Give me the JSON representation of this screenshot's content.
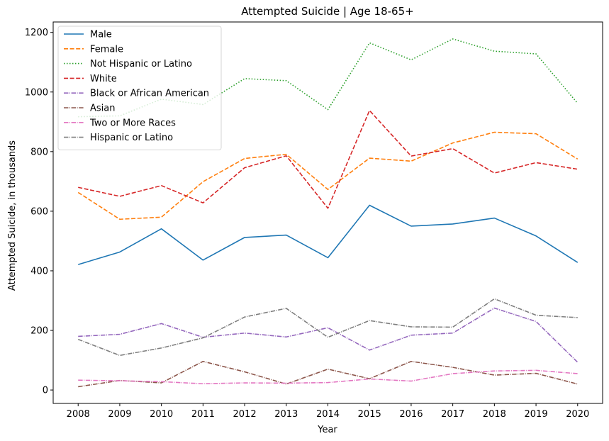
{
  "chart_data": {
    "type": "line",
    "title": "Attempted Suicide | Age 18-65+",
    "xlabel": "Year",
    "ylabel": "Attempted Suicide, in thousands",
    "x": [
      2008,
      2009,
      2010,
      2011,
      2012,
      2013,
      2014,
      2015,
      2016,
      2017,
      2018,
      2019,
      2020
    ],
    "xlim": [
      2007.4,
      2020.6
    ],
    "ylim": [
      -45,
      1235
    ],
    "yticks": [
      0,
      200,
      400,
      600,
      800,
      1000,
      1200
    ],
    "grid": false,
    "legend_position": "top-left",
    "series": [
      {
        "name": "Male",
        "color": "#1f77b4",
        "dash": "solid",
        "values": [
          421,
          463,
          541,
          436,
          512,
          520,
          444,
          620,
          550,
          557,
          577,
          517,
          428
        ]
      },
      {
        "name": "Female",
        "color": "#ff7f0e",
        "dash": "dashed",
        "values": [
          663,
          573,
          580,
          699,
          777,
          791,
          673,
          778,
          768,
          829,
          865,
          860,
          775
        ]
      },
      {
        "name": "Not Hispanic or Latino",
        "color": "#2ca02c",
        "dash": "dotted",
        "values": [
          917,
          920,
          976,
          958,
          1045,
          1038,
          941,
          1165,
          1108,
          1178,
          1137,
          1128,
          962
        ]
      },
      {
        "name": "White",
        "color": "#d62728",
        "dash": "dashed",
        "values": [
          680,
          650,
          686,
          628,
          746,
          786,
          610,
          938,
          785,
          810,
          728,
          763,
          741
        ]
      },
      {
        "name": "Black or African American",
        "color": "#9467bd",
        "dash": "dashdot",
        "values": [
          180,
          187,
          223,
          177,
          191,
          178,
          209,
          134,
          184,
          191,
          275,
          230,
          93
        ]
      },
      {
        "name": "Asian",
        "color": "#8c564b",
        "dash": "dashdot",
        "values": [
          11,
          32,
          24,
          96,
          61,
          20,
          70,
          38,
          96,
          76,
          50,
          56,
          20
        ]
      },
      {
        "name": "Two or More Races",
        "color": "#e377c2",
        "dash": "dashdot",
        "values": [
          33,
          31,
          28,
          21,
          24,
          23,
          25,
          37,
          30,
          55,
          64,
          66,
          55
        ]
      },
      {
        "name": "Hispanic or Latino",
        "color": "#7f7f7f",
        "dash": "dashdot",
        "values": [
          170,
          116,
          141,
          175,
          245,
          274,
          177,
          233,
          212,
          211,
          306,
          251,
          243
        ]
      }
    ]
  }
}
